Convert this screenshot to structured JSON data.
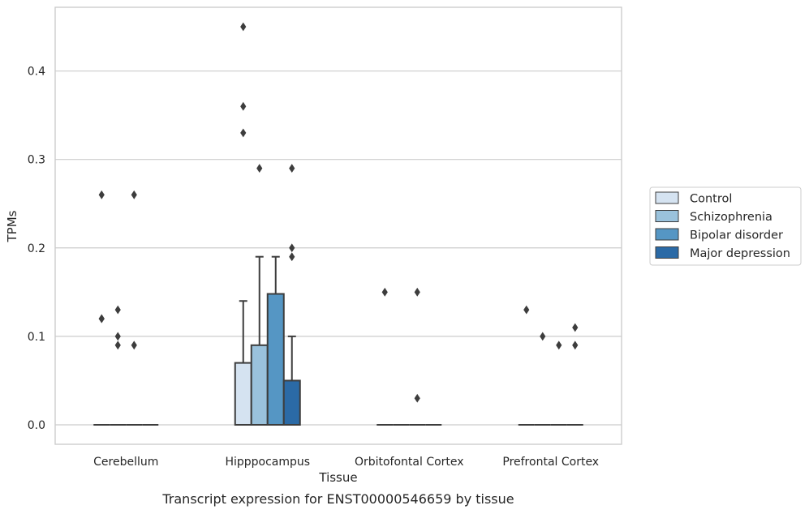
{
  "caption": "Transcript expression for ENST00000546659 by tissue",
  "chart_data": {
    "type": "box",
    "title": "",
    "xlabel": "Tissue",
    "ylabel": "TPMs",
    "ylim": [
      -0.022,
      0.472
    ],
    "yticks": [
      0.0,
      0.1,
      0.2,
      0.3,
      0.4
    ],
    "ytick_labels": [
      "0.0",
      "0.1",
      "0.2",
      "0.3",
      "0.4"
    ],
    "grid": "horizontal",
    "legend_placement": "right",
    "categories": [
      "Cerebellum",
      "Hipppocampus",
      "Orbitofontal Cortex",
      "Prefrontal Cortex"
    ],
    "series": [
      {
        "name": "Control",
        "color": "#d5e3f1",
        "boxes": [
          {
            "q1": 0,
            "median": 0,
            "q3": 0,
            "whisker_low": 0,
            "whisker_high": 0,
            "outliers": [
              0.26,
              0.12,
              0.12
            ]
          },
          {
            "q1": 0,
            "median": 0,
            "q3": 0.07,
            "whisker_low": 0,
            "whisker_high": 0.14,
            "outliers": [
              0.45,
              0.36,
              0.33
            ]
          },
          {
            "q1": 0,
            "median": 0,
            "q3": 0,
            "whisker_low": 0,
            "whisker_high": 0,
            "outliers": [
              0.15
            ]
          },
          {
            "q1": 0,
            "median": 0,
            "q3": 0,
            "whisker_low": 0,
            "whisker_high": 0,
            "outliers": [
              0.13
            ]
          }
        ]
      },
      {
        "name": "Schizophrenia",
        "color": "#9ac2dc",
        "boxes": [
          {
            "q1": 0,
            "median": 0,
            "q3": 0,
            "whisker_low": 0,
            "whisker_high": 0,
            "outliers": [
              0.13,
              0.1,
              0.09
            ]
          },
          {
            "q1": 0,
            "median": 0,
            "q3": 0.09,
            "whisker_low": 0,
            "whisker_high": 0.19,
            "outliers": [
              0.29
            ]
          },
          {
            "q1": 0,
            "median": 0,
            "q3": 0,
            "whisker_low": 0,
            "whisker_high": 0,
            "outliers": []
          },
          {
            "q1": 0,
            "median": 0,
            "q3": 0,
            "whisker_low": 0,
            "whisker_high": 0,
            "outliers": [
              0.1
            ]
          }
        ]
      },
      {
        "name": "Bipolar disorder",
        "color": "#5596c4",
        "boxes": [
          {
            "q1": 0,
            "median": 0,
            "q3": 0,
            "whisker_low": 0,
            "whisker_high": 0,
            "outliers": [
              0.26,
              0.09
            ]
          },
          {
            "q1": 0,
            "median": 0,
            "q3": 0.148,
            "whisker_low": 0,
            "whisker_high": 0.19,
            "outliers": []
          },
          {
            "q1": 0,
            "median": 0,
            "q3": 0,
            "whisker_low": 0,
            "whisker_high": 0,
            "outliers": [
              0.15,
              0.03
            ]
          },
          {
            "q1": 0,
            "median": 0,
            "q3": 0,
            "whisker_low": 0,
            "whisker_high": 0,
            "outliers": [
              0.09
            ]
          }
        ]
      },
      {
        "name": "Major depression",
        "color": "#2b6aa6",
        "boxes": [
          {
            "q1": 0,
            "median": 0,
            "q3": 0,
            "whisker_low": 0,
            "whisker_high": 0,
            "outliers": []
          },
          {
            "q1": 0,
            "median": 0,
            "q3": 0.05,
            "whisker_low": 0,
            "whisker_high": 0.1,
            "outliers": [
              0.29,
              0.2,
              0.19
            ]
          },
          {
            "q1": 0,
            "median": 0,
            "q3": 0,
            "whisker_low": 0,
            "whisker_high": 0,
            "outliers": []
          },
          {
            "q1": 0,
            "median": 0,
            "q3": 0,
            "whisker_low": 0,
            "whisker_high": 0,
            "outliers": [
              0.11,
              0.09
            ]
          }
        ]
      }
    ]
  }
}
